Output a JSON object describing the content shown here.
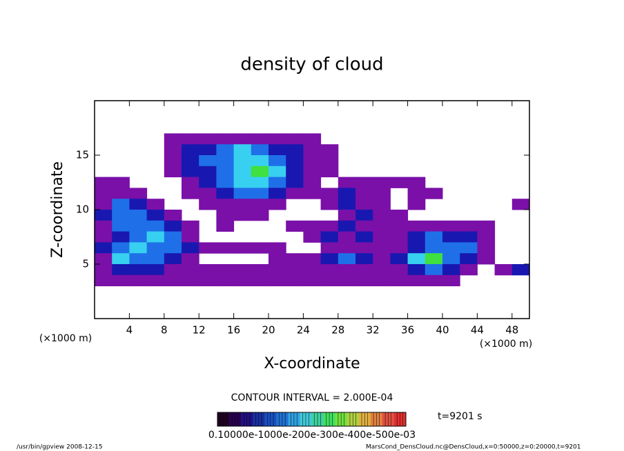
{
  "chart_data": {
    "type": "contour",
    "title": "density of cloud",
    "xlabel": "X-coordinate",
    "ylabel": "Z-coordinate",
    "xunit": "(×1000 m)",
    "yunit": "(×1000 m)",
    "xlim": [
      0,
      50
    ],
    "ylim": [
      0,
      20
    ],
    "xticks": [
      4,
      8,
      12,
      16,
      20,
      24,
      28,
      32,
      36,
      40,
      44,
      48
    ],
    "yticks": [
      5,
      10,
      15
    ],
    "x": [
      1,
      3,
      5,
      7,
      9,
      11,
      13,
      15,
      17,
      19,
      21,
      23,
      25,
      27,
      29,
      31,
      33,
      35,
      37,
      39,
      41,
      43,
      45,
      47,
      49
    ],
    "z": [
      17.5,
      16.5,
      15.5,
      14.5,
      13.5,
      12.5,
      11.5,
      10.5,
      9.5,
      8.5,
      7.5,
      6.5,
      5.5,
      4.5,
      3.5
    ],
    "values": [
      [
        0,
        0,
        0,
        0,
        0,
        0,
        0,
        0,
        0,
        0,
        0,
        0,
        0,
        0,
        0,
        0,
        0,
        0,
        0,
        0,
        0,
        0,
        0,
        0,
        0
      ],
      [
        0,
        0,
        0,
        0,
        2e-05,
        2e-05,
        2e-05,
        2e-05,
        2e-05,
        2e-05,
        2e-05,
        2e-05,
        2e-05,
        0,
        0,
        0,
        0,
        0,
        0,
        0,
        0,
        0,
        0,
        0,
        0
      ],
      [
        0,
        0,
        0,
        0,
        2e-05,
        6e-05,
        6e-05,
        0.00012,
        0.00025,
        0.00012,
        6e-05,
        6e-05,
        2e-05,
        2e-05,
        0,
        0,
        0,
        0,
        0,
        0,
        0,
        0,
        0,
        0,
        0
      ],
      [
        0,
        0,
        0,
        0,
        2e-05,
        6e-05,
        0.00012,
        0.00012,
        0.00025,
        0.00025,
        0.00012,
        6e-05,
        2e-05,
        2e-05,
        0,
        0,
        0,
        0,
        0,
        0,
        0,
        0,
        0,
        0,
        0
      ],
      [
        0,
        0,
        0,
        0,
        2e-05,
        6e-05,
        6e-05,
        0.00012,
        0.00025,
        0.0005,
        0.00025,
        6e-05,
        2e-05,
        2e-05,
        0,
        0,
        0,
        0,
        0,
        0,
        0,
        0,
        0,
        0,
        0
      ],
      [
        2e-05,
        2e-05,
        0,
        0,
        0,
        2e-05,
        6e-05,
        0.00012,
        0.00025,
        0.00025,
        0.00012,
        6e-05,
        2e-05,
        0,
        2e-05,
        2e-05,
        2e-05,
        2e-05,
        2e-05,
        0,
        0,
        0,
        0,
        0,
        0
      ],
      [
        2e-05,
        2e-05,
        2e-05,
        0,
        0,
        2e-05,
        2e-05,
        6e-05,
        0.00012,
        0.00012,
        6e-05,
        2e-05,
        2e-05,
        2e-05,
        6e-05,
        2e-05,
        2e-05,
        0,
        2e-05,
        2e-05,
        0,
        0,
        0,
        0,
        0
      ],
      [
        2e-05,
        0.00012,
        6e-05,
        2e-05,
        0,
        0,
        2e-05,
        2e-05,
        2e-05,
        2e-05,
        2e-05,
        0,
        0,
        2e-05,
        6e-05,
        2e-05,
        2e-05,
        0,
        2e-05,
        0,
        0,
        0,
        0,
        0,
        2e-05
      ],
      [
        6e-05,
        0.00012,
        0.00012,
        6e-05,
        2e-05,
        0,
        0,
        2e-05,
        2e-05,
        2e-05,
        0,
        0,
        0,
        0,
        2e-05,
        6e-05,
        2e-05,
        2e-05,
        0,
        0,
        0,
        0,
        0,
        0,
        0
      ],
      [
        2e-05,
        0.00012,
        0.00012,
        0.00012,
        6e-05,
        2e-05,
        0,
        2e-05,
        0,
        0,
        0,
        2e-05,
        2e-05,
        2e-05,
        6e-05,
        2e-05,
        2e-05,
        2e-05,
        2e-05,
        2e-05,
        2e-05,
        2e-05,
        2e-05,
        0,
        0
      ],
      [
        2e-05,
        6e-05,
        0.00012,
        0.00025,
        0.00012,
        2e-05,
        0,
        0,
        0,
        0,
        0,
        0,
        2e-05,
        6e-05,
        2e-05,
        6e-05,
        2e-05,
        2e-05,
        6e-05,
        0.00012,
        6e-05,
        6e-05,
        2e-05,
        0,
        0
      ],
      [
        6e-05,
        0.00012,
        0.00025,
        0.00012,
        0.00012,
        6e-05,
        2e-05,
        2e-05,
        2e-05,
        2e-05,
        2e-05,
        0,
        0,
        2e-05,
        2e-05,
        2e-05,
        2e-05,
        2e-05,
        6e-05,
        0.00012,
        0.00012,
        0.00012,
        2e-05,
        0,
        0
      ],
      [
        2e-05,
        0.00025,
        0.00012,
        0.00012,
        6e-05,
        2e-05,
        0,
        0,
        0,
        0,
        2e-05,
        2e-05,
        2e-05,
        6e-05,
        0.00012,
        6e-05,
        2e-05,
        6e-05,
        0.00025,
        0.0005,
        0.00012,
        6e-05,
        2e-05,
        0,
        0
      ],
      [
        2e-05,
        6e-05,
        6e-05,
        6e-05,
        2e-05,
        2e-05,
        2e-05,
        2e-05,
        2e-05,
        2e-05,
        2e-05,
        2e-05,
        2e-05,
        2e-05,
        2e-05,
        2e-05,
        2e-05,
        2e-05,
        6e-05,
        0.00012,
        6e-05,
        2e-05,
        0,
        2e-05,
        6e-05
      ],
      [
        2e-05,
        2e-05,
        2e-05,
        2e-05,
        2e-05,
        2e-05,
        2e-05,
        2e-05,
        2e-05,
        2e-05,
        2e-05,
        2e-05,
        2e-05,
        2e-05,
        2e-05,
        2e-05,
        2e-05,
        2e-05,
        2e-05,
        2e-05,
        2e-05,
        0,
        0,
        0,
        0
      ]
    ],
    "levels": [
      1e-05,
      4e-05,
      0.0001,
      0.0002,
      0.0004
    ],
    "level_colors": [
      "#7a10a8",
      "#1818b0",
      "#1f70e8",
      "#38d0f0",
      "#40e040"
    ],
    "contour_interval": "CONTOUR INTERVAL = 2.000E-04",
    "time_label": "t=9201 s",
    "colorbar_colors": [
      "#200020",
      "#280050",
      "#201080",
      "#1830a0",
      "#1850c0",
      "#2070d0",
      "#30a0e0",
      "#40c8d8",
      "#40d0a0",
      "#40e060",
      "#70e040",
      "#b0d040",
      "#e0b040",
      "#e08040",
      "#e05040",
      "#e03030"
    ],
    "colorbar_label": "0.10000e-1000e-200e-300e-400e-500e-03",
    "footer_left": "/usr/bin/gpview  2008-12-15",
    "footer_right": "MarsCond_DensCloud.nc@DensCloud,x=0:50000,z=0:20000,t=9201"
  }
}
